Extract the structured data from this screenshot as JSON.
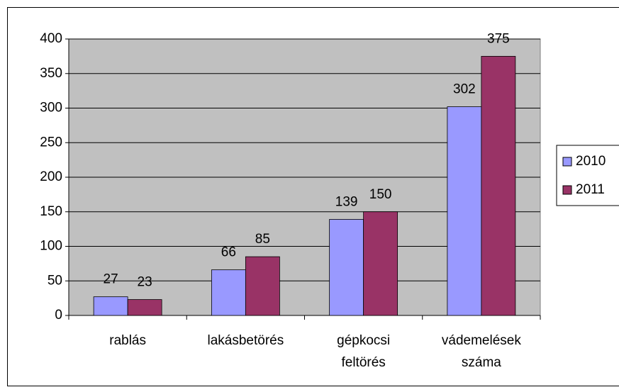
{
  "chart_data": {
    "type": "bar",
    "categories": [
      "rablás",
      "lakásbetörés",
      "gépkocsi feltörés",
      "vádemelések száma"
    ],
    "series": [
      {
        "name": "2010",
        "color": "#9999ff",
        "values": [
          27,
          66,
          139,
          302
        ]
      },
      {
        "name": "2011",
        "color": "#993366",
        "values": [
          23,
          85,
          150,
          375
        ]
      }
    ],
    "ylim": [
      0,
      400
    ],
    "yticks": [
      0,
      50,
      100,
      150,
      200,
      250,
      300,
      350,
      400
    ],
    "grid": true,
    "plot_background": "#c0c0c0",
    "legend": "right"
  }
}
